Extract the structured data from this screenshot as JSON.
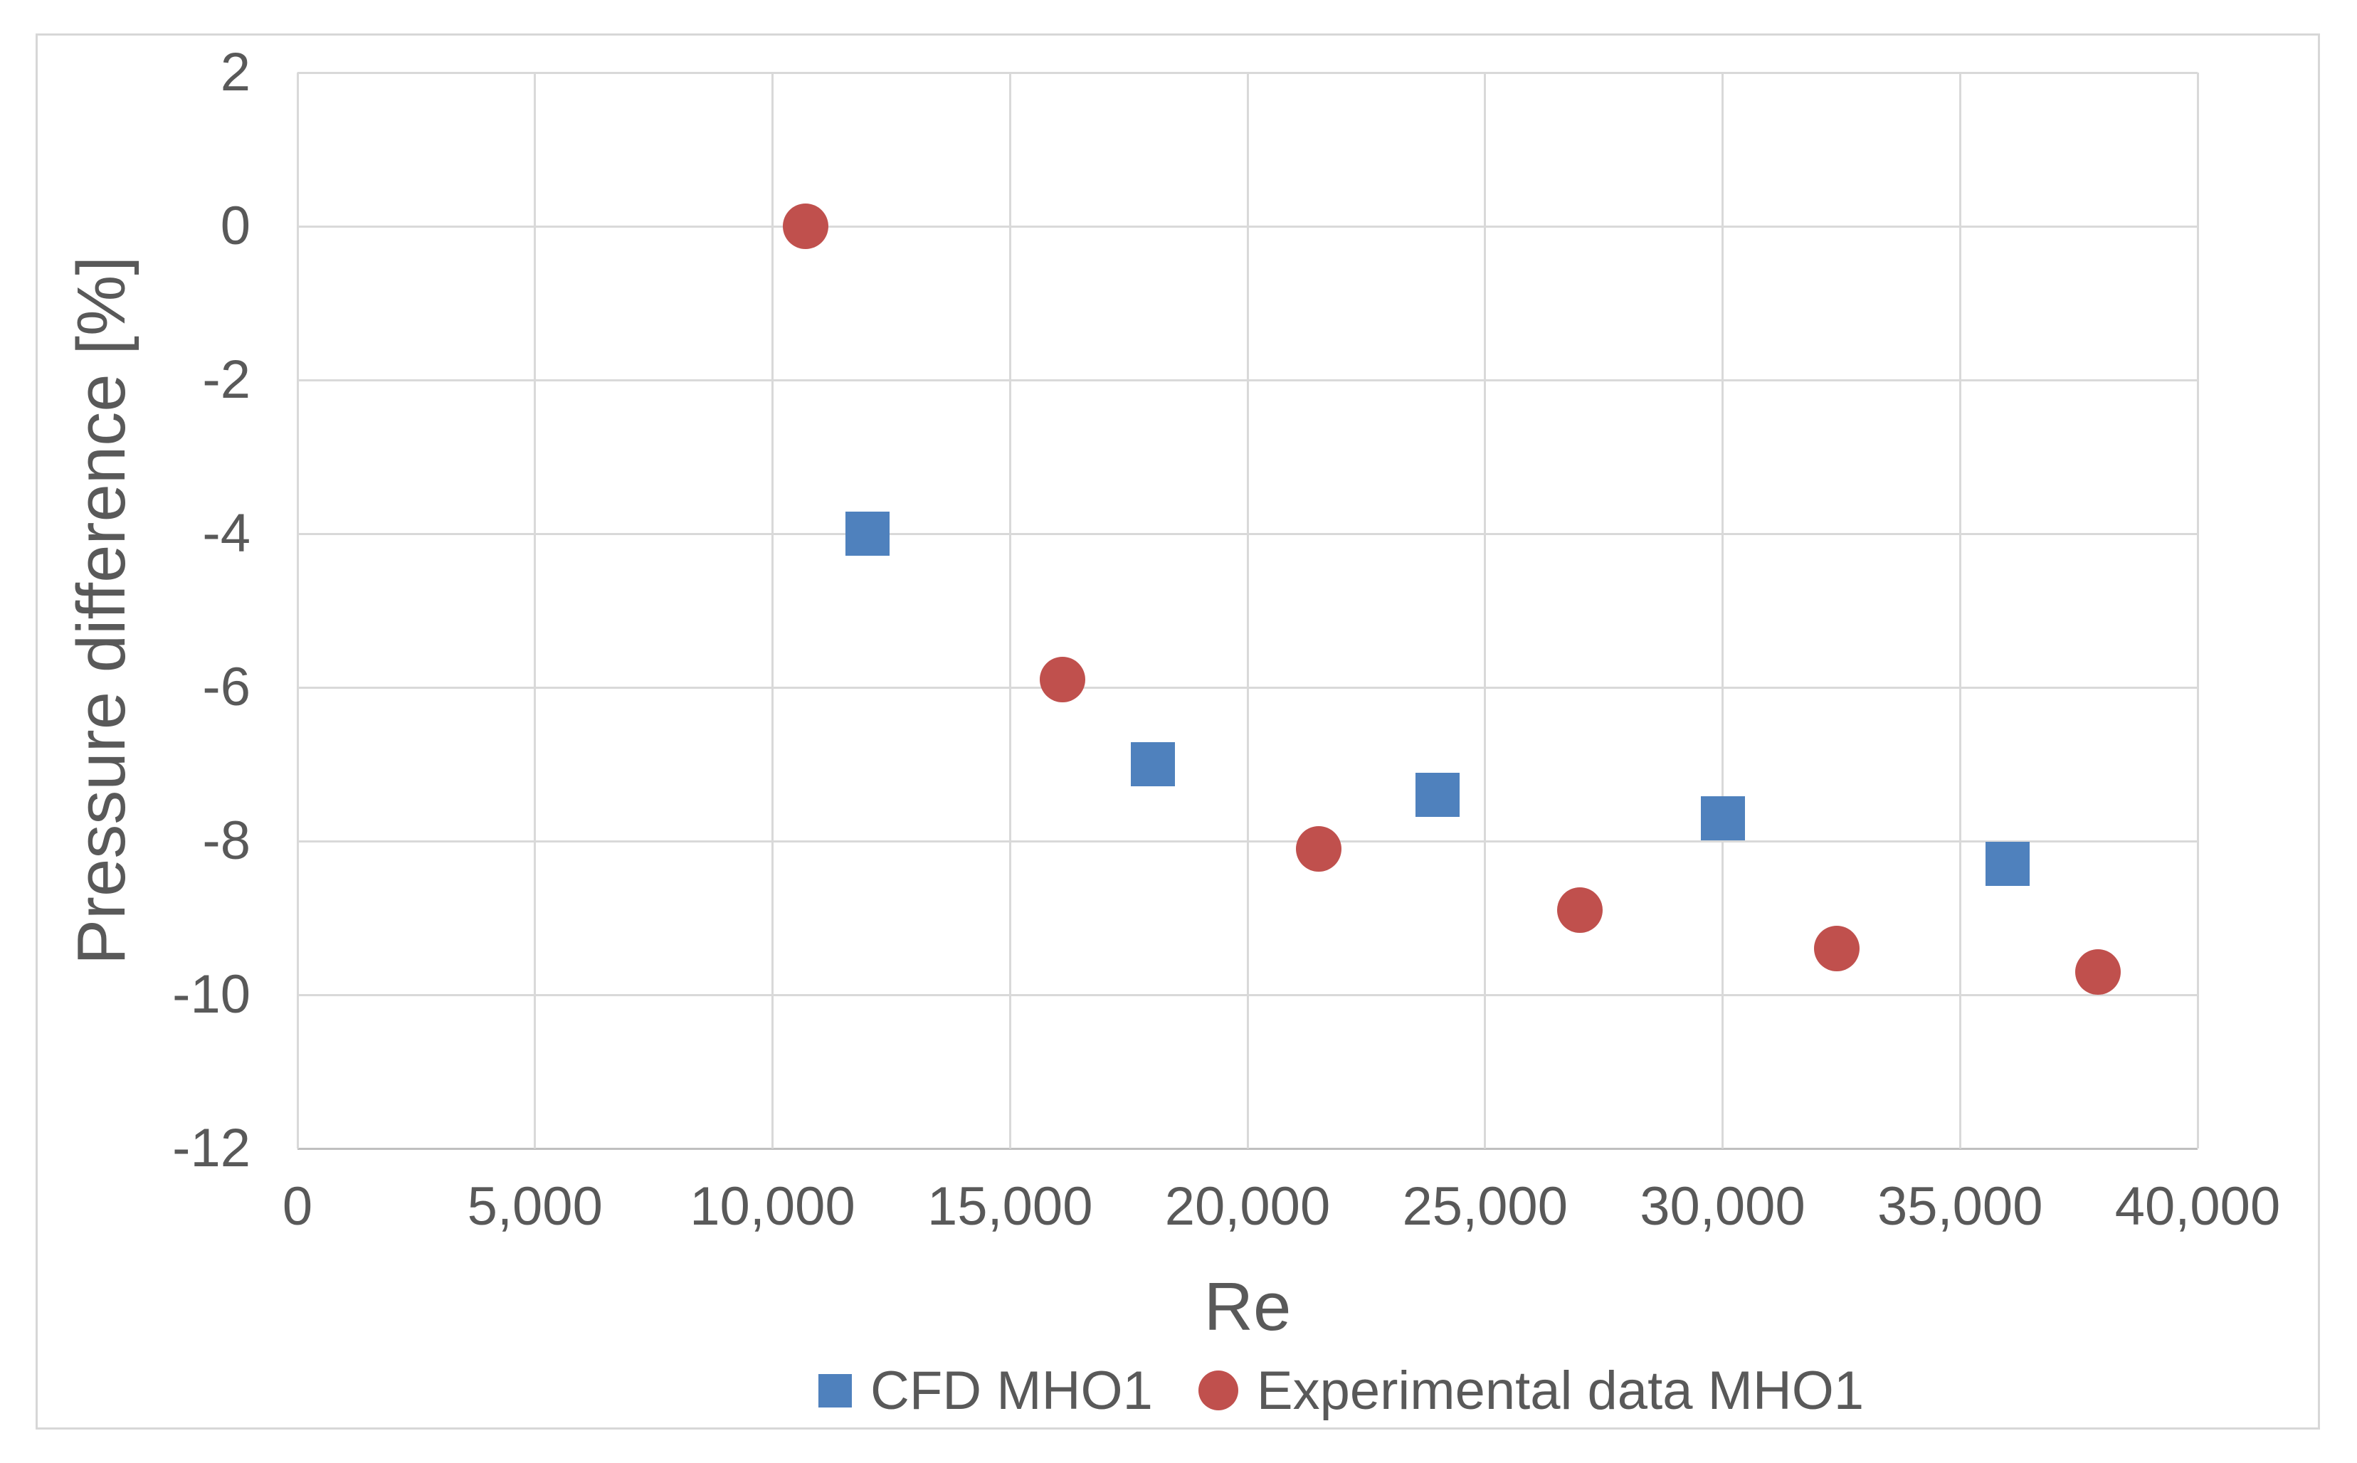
{
  "chart_data": {
    "type": "scatter",
    "title": "",
    "xlabel": "Re",
    "ylabel": "Pressure difference [%]",
    "xlim": [
      0,
      40000
    ],
    "ylim": [
      -12,
      2
    ],
    "grid": true,
    "legend_position": "bottom-center",
    "xticks": [
      {
        "value": 0,
        "label": "0"
      },
      {
        "value": 5000,
        "label": "5,000"
      },
      {
        "value": 10000,
        "label": "10,000"
      },
      {
        "value": 15000,
        "label": "15,000"
      },
      {
        "value": 20000,
        "label": "20,000"
      },
      {
        "value": 25000,
        "label": "25,000"
      },
      {
        "value": 30000,
        "label": "30,000"
      },
      {
        "value": 35000,
        "label": "35,000"
      },
      {
        "value": 40000,
        "label": "40,000"
      }
    ],
    "yticks": [
      {
        "value": 2,
        "label": "2"
      },
      {
        "value": 0,
        "label": "0"
      },
      {
        "value": -2,
        "label": "-2"
      },
      {
        "value": -4,
        "label": "-4"
      },
      {
        "value": -6,
        "label": "-6"
      },
      {
        "value": -8,
        "label": "-8"
      },
      {
        "value": -10,
        "label": "-10"
      },
      {
        "value": -12,
        "label": "-12"
      }
    ],
    "series": [
      {
        "name": "CFD MHO1",
        "marker": "square",
        "color": "#4F81BD",
        "points": [
          {
            "x": 12000,
            "y": -4.0
          },
          {
            "x": 18000,
            "y": -7.0
          },
          {
            "x": 24000,
            "y": -7.4
          },
          {
            "x": 30000,
            "y": -7.7
          },
          {
            "x": 36000,
            "y": -8.3
          }
        ]
      },
      {
        "name": "Experimental data MHO1",
        "marker": "circle",
        "color": "#C0504D",
        "points": [
          {
            "x": 10700,
            "y": 0.0
          },
          {
            "x": 16100,
            "y": -5.9
          },
          {
            "x": 21500,
            "y": -8.1
          },
          {
            "x": 27000,
            "y": -8.9
          },
          {
            "x": 32400,
            "y": -9.4
          },
          {
            "x": 37900,
            "y": -9.7
          }
        ]
      }
    ]
  },
  "colors": {
    "background": "#FFFFFF",
    "frame_border": "#D7D7D7",
    "gridline": "#D9D9D9",
    "axis_line": "#BFBFBF",
    "text": "#595959",
    "series_blue": "#4F81BD",
    "series_red": "#C0504D"
  }
}
